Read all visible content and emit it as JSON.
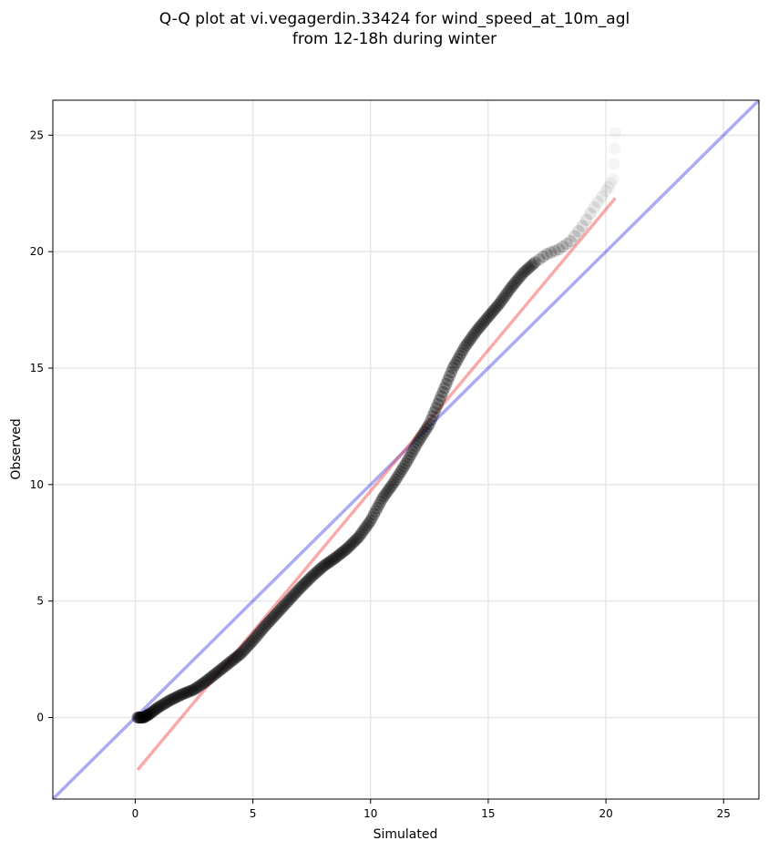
{
  "chart_data": {
    "type": "scatter",
    "title_lines": [
      "Q-Q plot at vi.vegagerdin.33424 for wind_speed_at_10m_agl",
      "from 12-18h during winter"
    ],
    "xlabel": "Simulated",
    "ylabel": "Observed",
    "xlim": [
      -3.5,
      26.5
    ],
    "ylim": [
      -3.5,
      26.5
    ],
    "xticks": [
      0,
      5,
      10,
      15,
      20,
      25
    ],
    "yticks": [
      0,
      5,
      10,
      15,
      20,
      25
    ],
    "xtick_labels": [
      "0",
      "5",
      "10",
      "15",
      "20",
      "25"
    ],
    "ytick_labels": [
      "0",
      "5",
      "10",
      "15",
      "20",
      "25"
    ],
    "grid": true,
    "reference_line": {
      "color": "#0000dd",
      "slope": 1,
      "intercept": 0
    },
    "fit_line": {
      "color": "#ee2222",
      "x": [
        0.1,
        20.4
      ],
      "y": [
        -2.25,
        22.3
      ]
    },
    "point_color": "#000000",
    "quantile_curve": [
      [
        0.1,
        0.0
      ],
      [
        0.35,
        0.0
      ],
      [
        0.6,
        0.15
      ],
      [
        1.0,
        0.45
      ],
      [
        1.5,
        0.75
      ],
      [
        2.0,
        1.0
      ],
      [
        2.5,
        1.2
      ],
      [
        3.0,
        1.55
      ],
      [
        3.5,
        1.95
      ],
      [
        4.0,
        2.35
      ],
      [
        4.5,
        2.75
      ],
      [
        5.0,
        3.3
      ],
      [
        5.5,
        3.9
      ],
      [
        6.0,
        4.45
      ],
      [
        6.5,
        5.0
      ],
      [
        7.0,
        5.55
      ],
      [
        7.5,
        6.05
      ],
      [
        8.0,
        6.5
      ],
      [
        8.5,
        6.85
      ],
      [
        9.0,
        7.25
      ],
      [
        9.5,
        7.75
      ],
      [
        10.0,
        8.45
      ],
      [
        10.5,
        9.4
      ],
      [
        11.0,
        10.1
      ],
      [
        11.5,
        10.9
      ],
      [
        12.0,
        11.8
      ],
      [
        12.5,
        12.6
      ],
      [
        13.0,
        13.8
      ],
      [
        13.5,
        15.0
      ],
      [
        14.0,
        15.9
      ],
      [
        14.5,
        16.6
      ],
      [
        15.0,
        17.2
      ],
      [
        15.5,
        17.8
      ],
      [
        16.0,
        18.5
      ],
      [
        16.5,
        19.1
      ],
      [
        17.0,
        19.55
      ],
      [
        17.5,
        19.9
      ],
      [
        18.0,
        20.1
      ],
      [
        18.5,
        20.45
      ],
      [
        19.0,
        21.1
      ],
      [
        19.5,
        21.9
      ],
      [
        20.0,
        22.6
      ],
      [
        20.3,
        23.1
      ],
      [
        20.4,
        25.1
      ]
    ]
  }
}
